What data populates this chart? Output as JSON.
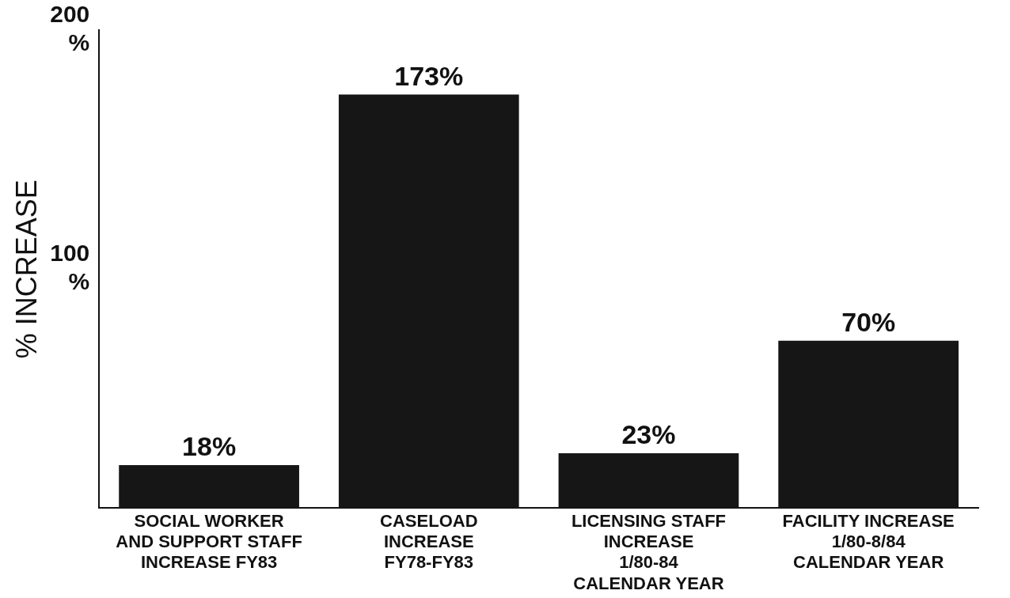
{
  "chart_data": {
    "type": "bar",
    "ylabel": "% INCREASE",
    "categories": [
      "SOCIAL WORKER\nAND SUPPORT STAFF\nINCREASE FY83",
      "CASELOAD\nINCREASE\nFY78-FY83",
      "LICENSING STAFF\nINCREASE\n1/80-84\nCALENDAR YEAR",
      "FACILITY INCREASE\n1/80-8/84\nCALENDAR YEAR"
    ],
    "values": [
      18,
      173,
      23,
      70
    ],
    "value_labels": [
      "18%",
      "173%",
      "23%",
      "70%"
    ],
    "color": "#161616",
    "ylim": [
      0,
      200
    ],
    "yticks": [
      {
        "value": 0,
        "label": null
      },
      {
        "value": 100,
        "label": "100\n%"
      },
      {
        "value": 200,
        "label": "200\n%"
      }
    ],
    "grid": false,
    "legend": false
  }
}
